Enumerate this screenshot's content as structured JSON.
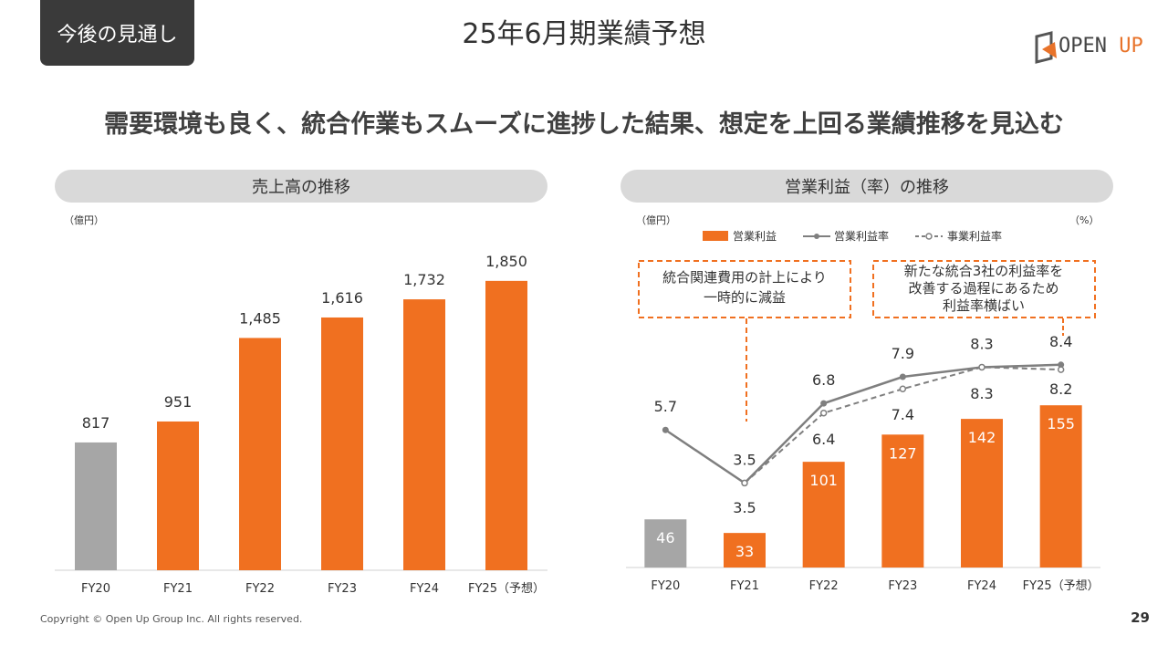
{
  "header": {
    "section_tag": "今後の見通し",
    "title": "25年6月期業績予想",
    "logo_text_main": "OPEN ",
    "logo_text_accent": "UP"
  },
  "headline": "需要環境も良く、統合作業もスムーズに進捗した結果、想定を上回る業績推移を見込む",
  "colors": {
    "orange": "#f07020",
    "gray": "#a6a6a6",
    "line": "#7f7f7f"
  },
  "footer": {
    "copyright": "Copyright © Open Up Group Inc. All rights reserved.",
    "page": "29"
  },
  "chart_data": [
    {
      "type": "bar",
      "panel_title": "売上高の推移",
      "unit_label": "（億円）",
      "categories": [
        "FY20",
        "FY21",
        "FY22",
        "FY23",
        "FY24",
        "FY25（予想）"
      ],
      "values": [
        817,
        951,
        1485,
        1616,
        1732,
        1850
      ],
      "value_labels": [
        "817",
        "951",
        "1,485",
        "1,616",
        "1,732",
        "1,850"
      ],
      "bar_colors": [
        "#a6a6a6",
        "#f07020",
        "#f07020",
        "#f07020",
        "#f07020",
        "#f07020"
      ],
      "ylim": [
        0,
        2100
      ]
    },
    {
      "type": "bar",
      "panel_title": "営業利益（率）の推移",
      "left_unit_label": "（億円）",
      "right_unit_label": "（%）",
      "categories": [
        "FY20",
        "FY21",
        "FY22",
        "FY23",
        "FY24",
        "FY25（予想）"
      ],
      "legend": [
        "営業利益",
        "営業利益率",
        "事業利益率"
      ],
      "series": [
        {
          "name": "営業利益",
          "type": "bar",
          "values": [
            46,
            33,
            101,
            127,
            142,
            155
          ],
          "labels": [
            "46",
            "33",
            "101",
            "127",
            "142",
            "155"
          ]
        },
        {
          "name": "営業利益率",
          "type": "line",
          "values": [
            5.7,
            3.5,
            6.8,
            7.9,
            8.3,
            8.4
          ],
          "labels": [
            "5.7",
            "3.5",
            "6.8",
            "7.9",
            "8.3",
            "8.4"
          ]
        },
        {
          "name": "事業利益率",
          "type": "line",
          "values": [
            null,
            3.5,
            6.4,
            7.4,
            8.3,
            8.2
          ],
          "labels": [
            "",
            "3.5",
            "6.4",
            "7.4",
            "8.3",
            "8.2"
          ]
        }
      ],
      "bar_colors": [
        "#a6a6a6",
        "#f07020",
        "#f07020",
        "#f07020",
        "#f07020",
        "#f07020"
      ],
      "ylim": [
        0,
        340
      ],
      "y2lim": [
        0,
        15.5
      ],
      "annotations": [
        {
          "lines": [
            "統合関連費用の計上により",
            "一時的に減益"
          ],
          "target": "FY21"
        },
        {
          "lines": [
            "新たな統合3社の利益率を",
            "改善する過程にあるため",
            "利益率横ばい"
          ],
          "target": "FY25（予想）"
        }
      ]
    }
  ]
}
